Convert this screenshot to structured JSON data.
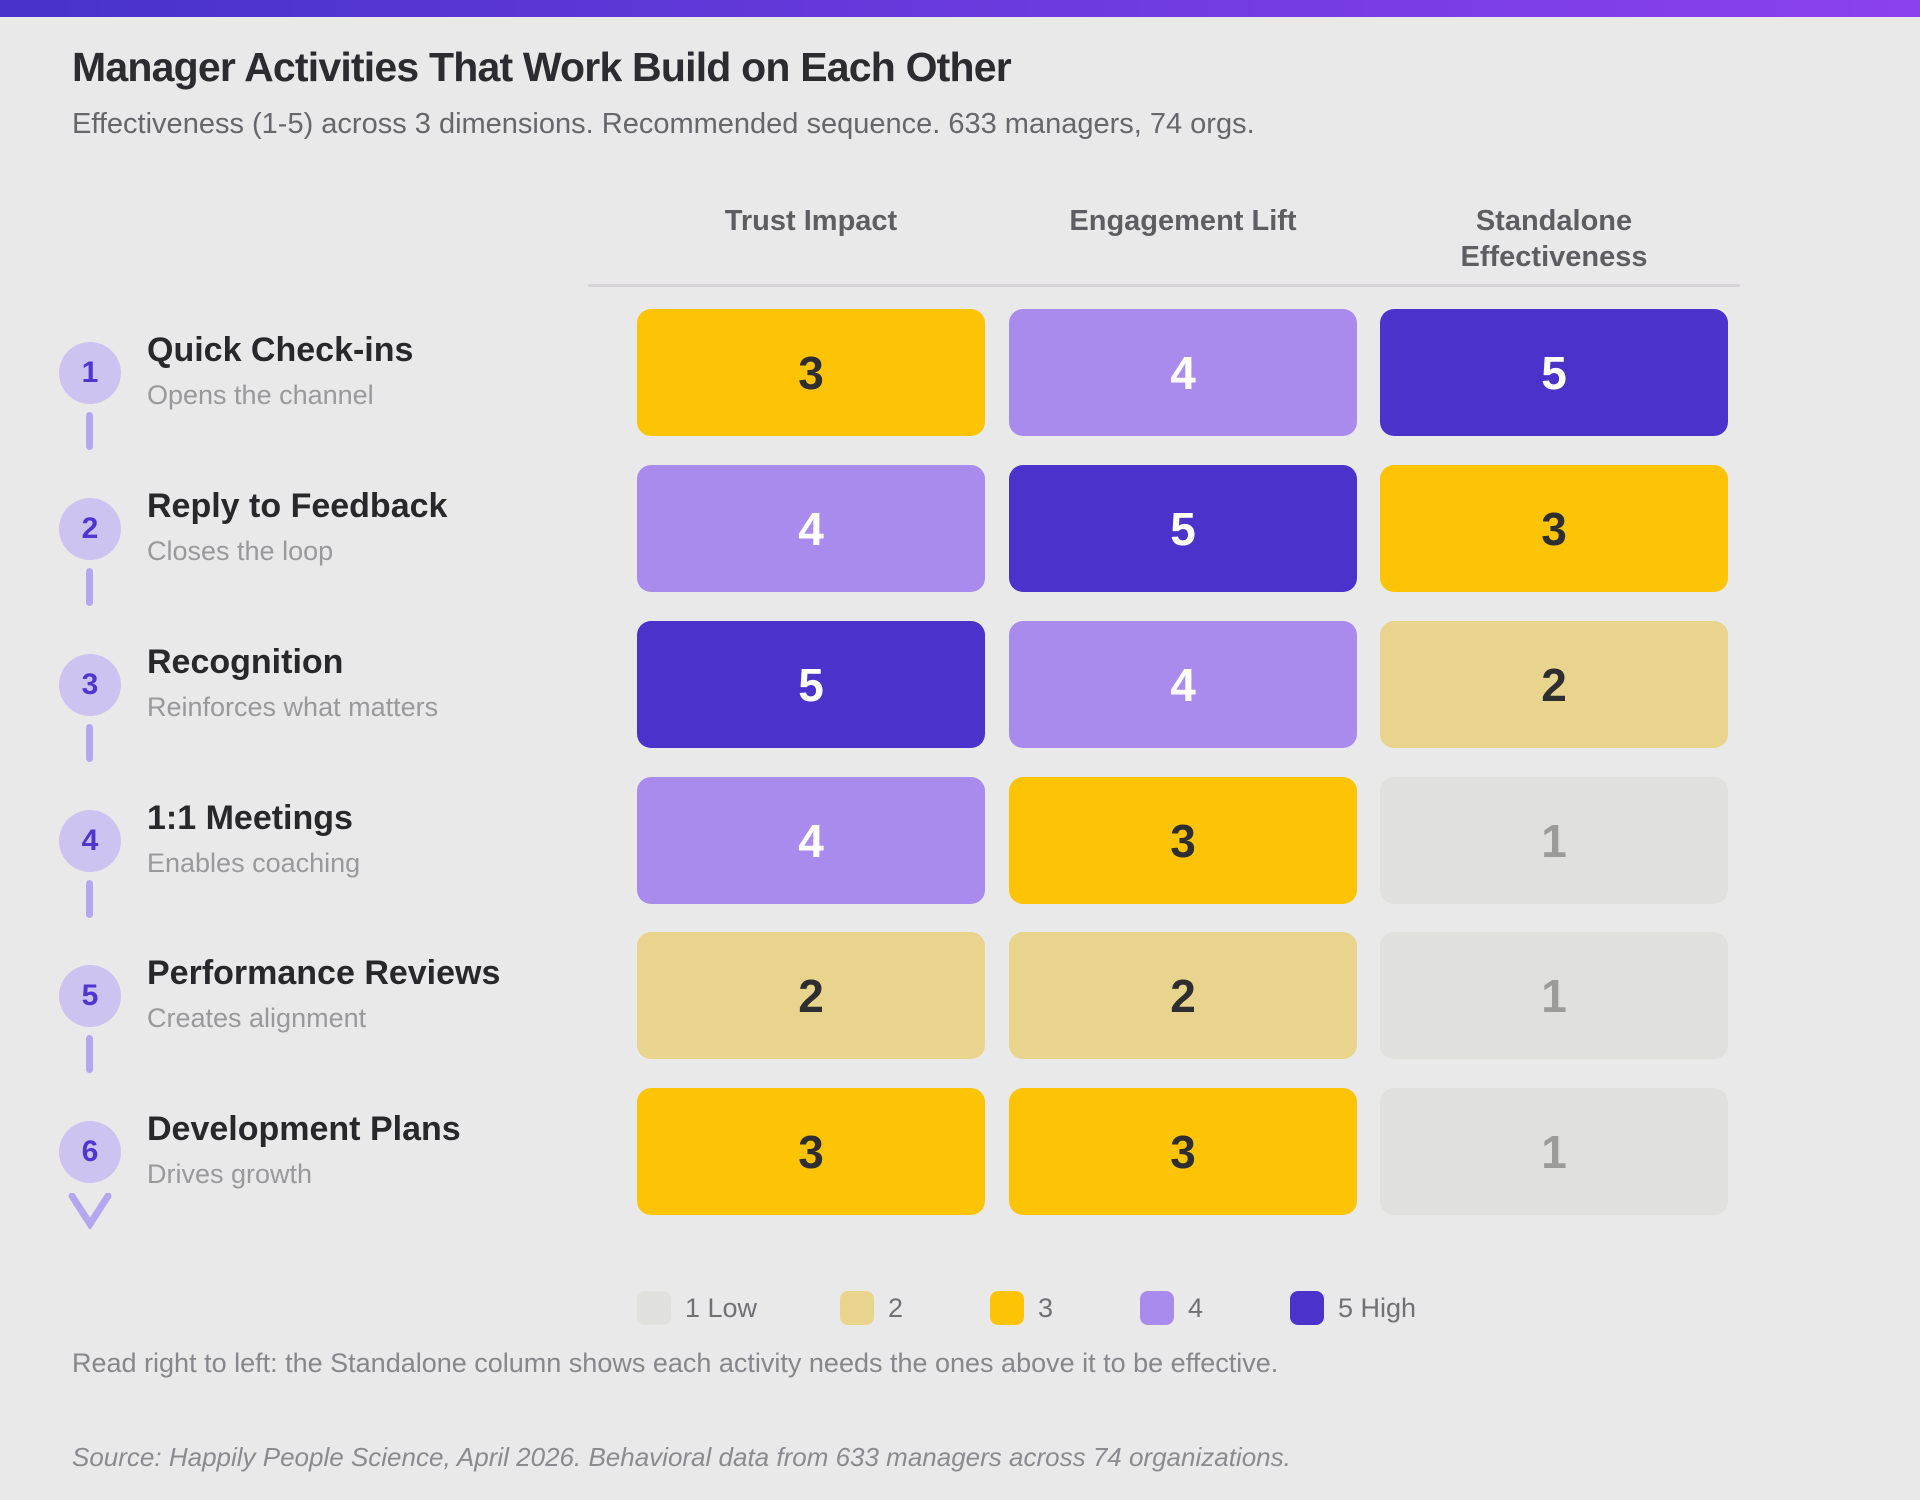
{
  "page": {
    "background": "#EAE9E9",
    "topbar": {
      "gradient_left": "#4732CB",
      "gradient_right": "#8B41EE"
    }
  },
  "header": {
    "title": "Manager Activities That Work Build on Each Other",
    "subtitle": "Effectiveness (1-5) across 3 dimensions. Recommended sequence. 633 managers, 74 orgs."
  },
  "matrix": {
    "columns": [
      "Trust Impact",
      "Engagement Lift",
      "Standalone Effectiveness"
    ],
    "rows": [
      {
        "num": "1",
        "label": "Quick Check-ins",
        "desc": "Opens the channel",
        "values": [
          3,
          4,
          5
        ]
      },
      {
        "num": "2",
        "label": "Reply to Feedback",
        "desc": "Closes the loop",
        "values": [
          4,
          5,
          3
        ]
      },
      {
        "num": "3",
        "label": "Recognition",
        "desc": "Reinforces what matters",
        "values": [
          5,
          4,
          2
        ]
      },
      {
        "num": "4",
        "label": "1:1 Meetings",
        "desc": "Enables coaching",
        "values": [
          4,
          3,
          1
        ]
      },
      {
        "num": "5",
        "label": "Performance Reviews",
        "desc": "Creates alignment",
        "values": [
          2,
          2,
          1
        ]
      },
      {
        "num": "6",
        "label": "Development Plans",
        "desc": "Drives growth",
        "values": [
          3,
          3,
          1
        ]
      }
    ],
    "badge": {
      "bg": "#CCC3F0",
      "text": "#4E36CF",
      "connector": "#B5A7EF"
    }
  },
  "scale_colors": {
    "1": {
      "bg": "#E0E0DE",
      "text": "#9B9B9B"
    },
    "2": {
      "bg": "#E8D48D",
      "text": "#2E2D30"
    },
    "3": {
      "bg": "#FDC405",
      "text": "#2E2D30"
    },
    "4": {
      "bg": "#A98BEE",
      "text": "#FFFFFF"
    },
    "5": {
      "bg": "#4B32CB",
      "text": "#FFFFFF"
    }
  },
  "legend": [
    {
      "label": "1 Low",
      "value": "1"
    },
    {
      "label": "2",
      "value": "2"
    },
    {
      "label": "3",
      "value": "3"
    },
    {
      "label": "4",
      "value": "4"
    },
    {
      "label": "5 High",
      "value": "5"
    }
  ],
  "footer": {
    "note": "Read right to left: the Standalone column shows each activity needs the ones above it to be effective.",
    "source": "Source: Happily People Science, April 2026. Behavioral data from 633 managers across 74 organizations."
  },
  "chart_data": {
    "type": "heatmap",
    "title": "Manager Activities That Work Build on Each Other",
    "subtitle": "Effectiveness (1-5) across 3 dimensions. Recommended sequence. 633 managers, 74 orgs.",
    "columns": [
      "Trust Impact",
      "Engagement Lift",
      "Standalone Effectiveness"
    ],
    "rows": [
      "Quick Check-ins",
      "Reply to Feedback",
      "Recognition",
      "1:1 Meetings",
      "Performance Reviews",
      "Development Plans"
    ],
    "row_descriptions": [
      "Opens the channel",
      "Closes the loop",
      "Reinforces what matters",
      "Enables coaching",
      "Creates alignment",
      "Drives growth"
    ],
    "row_sequence": [
      1,
      2,
      3,
      4,
      5,
      6
    ],
    "values": [
      [
        3,
        4,
        5
      ],
      [
        4,
        5,
        3
      ],
      [
        5,
        4,
        2
      ],
      [
        4,
        3,
        1
      ],
      [
        2,
        2,
        1
      ],
      [
        3,
        3,
        1
      ]
    ],
    "value_range": [
      1,
      5
    ],
    "legend_labels": [
      "1 Low",
      "2",
      "3",
      "4",
      "5 High"
    ],
    "legend_position": "bottom",
    "annotation": "Read right to left: the Standalone column shows each activity needs the ones above it to be effective.",
    "source": "Source: Happily People Science, April 2026. Behavioral data from 633 managers across 74 organizations."
  }
}
